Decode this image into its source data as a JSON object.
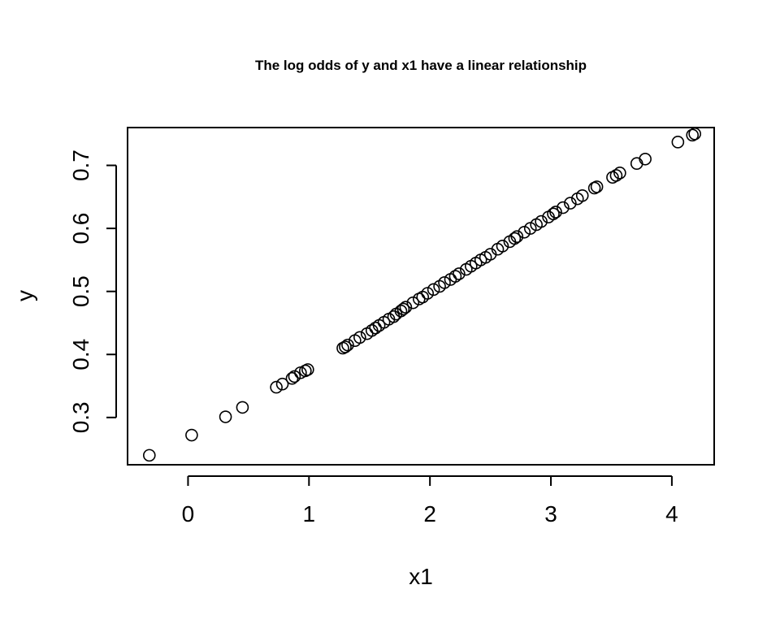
{
  "chart_data": {
    "type": "scatter",
    "title": "The log odds of y and x1 have a linear relationship",
    "xlabel": "x1",
    "ylabel": "y",
    "xlim": [
      -0.5,
      4.35
    ],
    "ylim": [
      0.225,
      0.76
    ],
    "xticks": [
      0,
      1,
      2,
      3,
      4
    ],
    "yticks": [
      0.3,
      0.4,
      0.5,
      0.6,
      0.7
    ],
    "grid": false,
    "marker": "open-circle",
    "x": [
      -0.32,
      0.03,
      0.31,
      0.45,
      0.73,
      0.78,
      0.86,
      0.88,
      0.93,
      0.97,
      0.99,
      1.28,
      1.3,
      1.32,
      1.38,
      1.42,
      1.48,
      1.52,
      1.55,
      1.58,
      1.62,
      1.66,
      1.7,
      1.72,
      1.76,
      1.78,
      1.8,
      1.86,
      1.91,
      1.94,
      1.98,
      2.03,
      2.08,
      2.12,
      2.17,
      2.21,
      2.24,
      2.3,
      2.34,
      2.38,
      2.42,
      2.46,
      2.5,
      2.56,
      2.6,
      2.66,
      2.7,
      2.72,
      2.78,
      2.83,
      2.88,
      2.92,
      2.98,
      3.02,
      3.04,
      3.1,
      3.16,
      3.22,
      3.26,
      3.36,
      3.38,
      3.51,
      3.54,
      3.57,
      3.71,
      3.78,
      4.05,
      4.17,
      4.19
    ],
    "y": [
      0.24,
      0.272,
      0.301,
      0.316,
      0.348,
      0.353,
      0.362,
      0.365,
      0.371,
      0.374,
      0.376,
      0.41,
      0.412,
      0.415,
      0.422,
      0.427,
      0.433,
      0.438,
      0.442,
      0.446,
      0.451,
      0.456,
      0.46,
      0.464,
      0.469,
      0.472,
      0.475,
      0.482,
      0.488,
      0.491,
      0.497,
      0.503,
      0.508,
      0.514,
      0.519,
      0.524,
      0.528,
      0.535,
      0.54,
      0.545,
      0.55,
      0.554,
      0.559,
      0.567,
      0.572,
      0.579,
      0.584,
      0.587,
      0.594,
      0.6,
      0.606,
      0.611,
      0.618,
      0.623,
      0.626,
      0.633,
      0.64,
      0.647,
      0.652,
      0.664,
      0.666,
      0.681,
      0.684,
      0.688,
      0.703,
      0.71,
      0.737,
      0.748,
      0.75
    ]
  }
}
